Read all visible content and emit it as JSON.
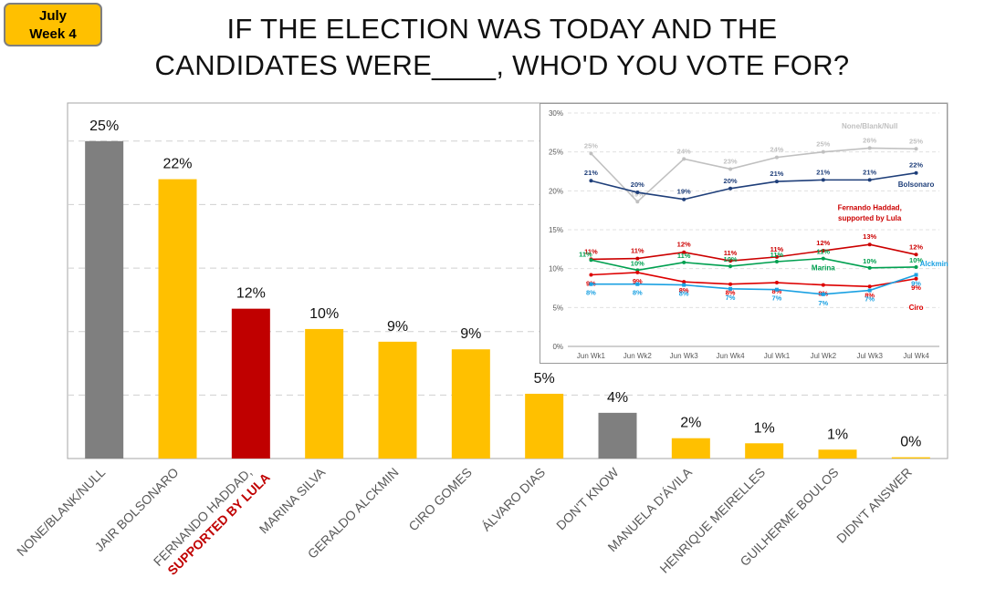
{
  "badge": {
    "line1": "July",
    "line2": "Week 4"
  },
  "title": {
    "line1": "IF THE ELECTION WAS TODAY AND THE",
    "line2": "CANDIDATES WERE____, WHO'D YOU VOTE FOR?"
  },
  "colors": {
    "gray": "#7f7f7f",
    "yellow": "#ffc000",
    "red": "#c00000"
  },
  "chart_data": [
    {
      "type": "bar",
      "title": "IF THE ELECTION WAS TODAY AND THE CANDIDATES WERE____, WHO'D YOU VOTE FOR?",
      "ylim": [
        0,
        28
      ],
      "categories": [
        [
          "NONE/BLANK/NULL"
        ],
        [
          "JAIR BOLSONARO"
        ],
        [
          "FERNANDO HADDAD,",
          "SUPPORTED BY LULA"
        ],
        [
          "MARINA SILVA"
        ],
        [
          "GERALDO ALCKMIN"
        ],
        [
          "CIRO GOMES"
        ],
        [
          "ÁLVARO DIAS"
        ],
        [
          "DON'T KNOW"
        ],
        [
          "MANUELA D'ÁVILA"
        ],
        [
          "HENRIQUE MEIRELLES"
        ],
        [
          "GUILHERME BOULOS"
        ],
        [
          "DIDN'T ANSWER"
        ]
      ],
      "values": [
        25,
        22,
        12,
        10,
        9,
        9,
        5,
        4,
        2,
        1,
        1,
        0
      ],
      "heights": [
        25,
        22,
        11.8,
        10.2,
        9.2,
        8.6,
        5.1,
        3.6,
        1.6,
        1.2,
        0.7,
        0.1
      ],
      "labels": [
        "25%",
        "22%",
        "12%",
        "10%",
        "9%",
        "9%",
        "5%",
        "4%",
        "2%",
        "1%",
        "1%",
        "0%"
      ],
      "bar_colors": [
        "#7f7f7f",
        "#ffc000",
        "#c00000",
        "#ffc000",
        "#ffc000",
        "#ffc000",
        "#ffc000",
        "#7f7f7f",
        "#ffc000",
        "#ffc000",
        "#ffc000",
        "#ffc000"
      ]
    },
    {
      "type": "line",
      "x": [
        "Jun Wk1",
        "Jun Wk2",
        "Jun Wk3",
        "Jun Wk4",
        "Jul Wk1",
        "Jul Wk2",
        "Jul Wk3",
        "Jul Wk4"
      ],
      "ylim": [
        0,
        30
      ],
      "yticks": [
        "0%",
        "5%",
        "10%",
        "15%",
        "20%",
        "25%",
        "30%"
      ],
      "series": [
        {
          "name": "None/Blank/Null",
          "color": "#c0c0c0",
          "values": [
            25,
            19,
            24,
            23,
            24,
            25,
            26,
            25
          ],
          "plot": [
            24.8,
            18.6,
            24.1,
            22.8,
            24.3,
            25,
            25.5,
            25.4
          ],
          "labels": [
            "25%",
            "19%",
            "24%",
            "23%",
            "24%",
            "25%",
            "26%",
            "25%"
          ],
          "label_pos": "above"
        },
        {
          "name": "Bolsonaro",
          "color": "#1f3f7a",
          "values": [
            21,
            20,
            19,
            20,
            21,
            21,
            21,
            22
          ],
          "plot": [
            21.3,
            19.8,
            18.9,
            20.3,
            21.2,
            21.4,
            21.4,
            22.3
          ],
          "labels": [
            "21%",
            "20%",
            "19%",
            "20%",
            "21%",
            "21%",
            "21%",
            "22%"
          ],
          "label_pos": "above"
        },
        {
          "name": "Fernando Haddad, supported by Lula",
          "color": "#cc0000",
          "values": [
            11,
            11,
            12,
            11,
            11,
            12,
            13,
            12
          ],
          "plot": [
            11.2,
            11.3,
            12.1,
            11.0,
            11.5,
            12.3,
            13.1,
            11.8
          ],
          "labels": [
            "11%",
            "11%",
            "12%",
            "11%",
            "11%",
            "12%",
            "13%",
            "12%"
          ],
          "label_pos": "above"
        },
        {
          "name": "Marina",
          "color": "#00a050",
          "values": [
            11,
            10,
            11,
            10,
            11,
            11,
            10,
            10
          ],
          "plot": [
            11.1,
            9.8,
            10.8,
            10.3,
            10.9,
            11.3,
            10.1,
            10.2
          ],
          "labels": [
            "11%",
            "10%",
            "11%",
            "10%",
            "11%",
            "11%",
            "10%",
            "10%"
          ],
          "label_pos": "right"
        },
        {
          "name": "Ciro",
          "color": "#dd0000",
          "values": [
            9,
            9,
            8,
            8,
            8,
            8,
            8,
            9
          ],
          "plot": [
            9.2,
            9.5,
            8.3,
            8.0,
            8.2,
            7.9,
            7.7,
            8.7
          ],
          "labels": [
            "9%",
            "9%",
            "8%",
            "8%",
            "8%",
            "8%",
            "8%",
            "9%"
          ],
          "label_pos": "below"
        },
        {
          "name": "Alckmin",
          "color": "#1ba1e2",
          "values": [
            8,
            8,
            8,
            7,
            7,
            7,
            7,
            9
          ],
          "plot": [
            8.0,
            8.0,
            7.9,
            7.4,
            7.3,
            6.7,
            7.2,
            9.2
          ],
          "labels": [
            "8%",
            "8%",
            "8%",
            "7%",
            "7%",
            "7%",
            "7%",
            "9%"
          ],
          "label_pos": "below"
        }
      ],
      "series_labels": [
        {
          "text": "None/Blank/Null",
          "color": "#c0c0c0",
          "at": "Jul Wk3",
          "y": 28
        },
        {
          "text": "Bolsonaro",
          "color": "#1f3f7a",
          "at": "Jul Wk4",
          "y": 20.5
        },
        {
          "text": "Fernando Haddad,",
          "color": "#cc0000",
          "at": "Jul Wk3",
          "y": 17.5
        },
        {
          "text": "supported by Lula",
          "color": "#cc0000",
          "at": "Jul Wk3",
          "y": 16.2
        },
        {
          "text": "Marina",
          "color": "#00a050",
          "at": "Jul Wk2",
          "y": 9.8
        },
        {
          "text": "Alckmin",
          "color": "#1ba1e2",
          "at": "Jul Wk4",
          "y": 10.3
        },
        {
          "text": "Ciro",
          "color": "#dd0000",
          "at": "Jul Wk4",
          "y": 4.7
        }
      ]
    }
  ]
}
